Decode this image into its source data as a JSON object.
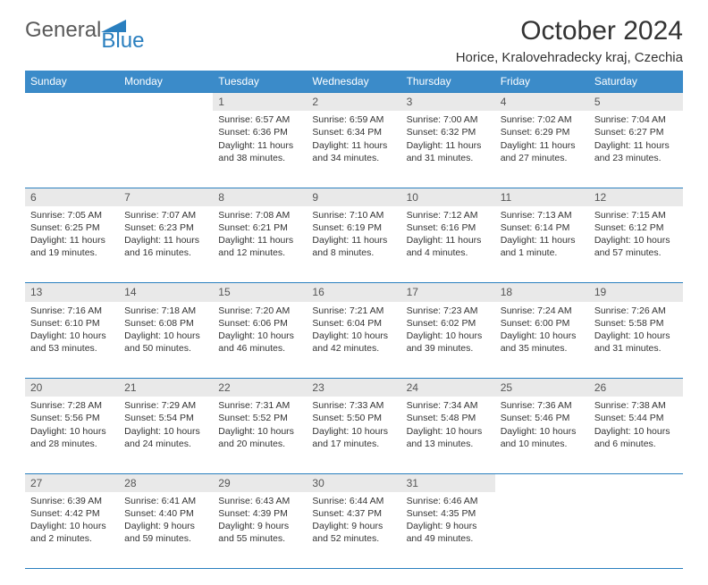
{
  "logo": {
    "text1": "General",
    "text2": "Blue"
  },
  "title": "October 2024",
  "location": "Horice, Kralovehradecky kraj, Czechia",
  "style": {
    "header_bg": "#3b8bc9",
    "header_fg": "#ffffff",
    "daynum_bg": "#e9e9e9",
    "border_color": "#2a7fbf",
    "page_bg": "#ffffff",
    "text_color": "#333333",
    "logo_gray": "#5a5a5a",
    "logo_blue": "#2a7fbf",
    "title_fontsize": 30,
    "location_fontsize": 15,
    "header_fontsize": 12,
    "cell_fontsize": 10.5
  },
  "day_headers": [
    "Sunday",
    "Monday",
    "Tuesday",
    "Wednesday",
    "Thursday",
    "Friday",
    "Saturday"
  ],
  "weeks": [
    [
      null,
      null,
      {
        "n": "1",
        "sunrise": "Sunrise: 6:57 AM",
        "sunset": "Sunset: 6:36 PM",
        "daylight": "Daylight: 11 hours and 38 minutes."
      },
      {
        "n": "2",
        "sunrise": "Sunrise: 6:59 AM",
        "sunset": "Sunset: 6:34 PM",
        "daylight": "Daylight: 11 hours and 34 minutes."
      },
      {
        "n": "3",
        "sunrise": "Sunrise: 7:00 AM",
        "sunset": "Sunset: 6:32 PM",
        "daylight": "Daylight: 11 hours and 31 minutes."
      },
      {
        "n": "4",
        "sunrise": "Sunrise: 7:02 AM",
        "sunset": "Sunset: 6:29 PM",
        "daylight": "Daylight: 11 hours and 27 minutes."
      },
      {
        "n": "5",
        "sunrise": "Sunrise: 7:04 AM",
        "sunset": "Sunset: 6:27 PM",
        "daylight": "Daylight: 11 hours and 23 minutes."
      }
    ],
    [
      {
        "n": "6",
        "sunrise": "Sunrise: 7:05 AM",
        "sunset": "Sunset: 6:25 PM",
        "daylight": "Daylight: 11 hours and 19 minutes."
      },
      {
        "n": "7",
        "sunrise": "Sunrise: 7:07 AM",
        "sunset": "Sunset: 6:23 PM",
        "daylight": "Daylight: 11 hours and 16 minutes."
      },
      {
        "n": "8",
        "sunrise": "Sunrise: 7:08 AM",
        "sunset": "Sunset: 6:21 PM",
        "daylight": "Daylight: 11 hours and 12 minutes."
      },
      {
        "n": "9",
        "sunrise": "Sunrise: 7:10 AM",
        "sunset": "Sunset: 6:19 PM",
        "daylight": "Daylight: 11 hours and 8 minutes."
      },
      {
        "n": "10",
        "sunrise": "Sunrise: 7:12 AM",
        "sunset": "Sunset: 6:16 PM",
        "daylight": "Daylight: 11 hours and 4 minutes."
      },
      {
        "n": "11",
        "sunrise": "Sunrise: 7:13 AM",
        "sunset": "Sunset: 6:14 PM",
        "daylight": "Daylight: 11 hours and 1 minute."
      },
      {
        "n": "12",
        "sunrise": "Sunrise: 7:15 AM",
        "sunset": "Sunset: 6:12 PM",
        "daylight": "Daylight: 10 hours and 57 minutes."
      }
    ],
    [
      {
        "n": "13",
        "sunrise": "Sunrise: 7:16 AM",
        "sunset": "Sunset: 6:10 PM",
        "daylight": "Daylight: 10 hours and 53 minutes."
      },
      {
        "n": "14",
        "sunrise": "Sunrise: 7:18 AM",
        "sunset": "Sunset: 6:08 PM",
        "daylight": "Daylight: 10 hours and 50 minutes."
      },
      {
        "n": "15",
        "sunrise": "Sunrise: 7:20 AM",
        "sunset": "Sunset: 6:06 PM",
        "daylight": "Daylight: 10 hours and 46 minutes."
      },
      {
        "n": "16",
        "sunrise": "Sunrise: 7:21 AM",
        "sunset": "Sunset: 6:04 PM",
        "daylight": "Daylight: 10 hours and 42 minutes."
      },
      {
        "n": "17",
        "sunrise": "Sunrise: 7:23 AM",
        "sunset": "Sunset: 6:02 PM",
        "daylight": "Daylight: 10 hours and 39 minutes."
      },
      {
        "n": "18",
        "sunrise": "Sunrise: 7:24 AM",
        "sunset": "Sunset: 6:00 PM",
        "daylight": "Daylight: 10 hours and 35 minutes."
      },
      {
        "n": "19",
        "sunrise": "Sunrise: 7:26 AM",
        "sunset": "Sunset: 5:58 PM",
        "daylight": "Daylight: 10 hours and 31 minutes."
      }
    ],
    [
      {
        "n": "20",
        "sunrise": "Sunrise: 7:28 AM",
        "sunset": "Sunset: 5:56 PM",
        "daylight": "Daylight: 10 hours and 28 minutes."
      },
      {
        "n": "21",
        "sunrise": "Sunrise: 7:29 AM",
        "sunset": "Sunset: 5:54 PM",
        "daylight": "Daylight: 10 hours and 24 minutes."
      },
      {
        "n": "22",
        "sunrise": "Sunrise: 7:31 AM",
        "sunset": "Sunset: 5:52 PM",
        "daylight": "Daylight: 10 hours and 20 minutes."
      },
      {
        "n": "23",
        "sunrise": "Sunrise: 7:33 AM",
        "sunset": "Sunset: 5:50 PM",
        "daylight": "Daylight: 10 hours and 17 minutes."
      },
      {
        "n": "24",
        "sunrise": "Sunrise: 7:34 AM",
        "sunset": "Sunset: 5:48 PM",
        "daylight": "Daylight: 10 hours and 13 minutes."
      },
      {
        "n": "25",
        "sunrise": "Sunrise: 7:36 AM",
        "sunset": "Sunset: 5:46 PM",
        "daylight": "Daylight: 10 hours and 10 minutes."
      },
      {
        "n": "26",
        "sunrise": "Sunrise: 7:38 AM",
        "sunset": "Sunset: 5:44 PM",
        "daylight": "Daylight: 10 hours and 6 minutes."
      }
    ],
    [
      {
        "n": "27",
        "sunrise": "Sunrise: 6:39 AM",
        "sunset": "Sunset: 4:42 PM",
        "daylight": "Daylight: 10 hours and 2 minutes."
      },
      {
        "n": "28",
        "sunrise": "Sunrise: 6:41 AM",
        "sunset": "Sunset: 4:40 PM",
        "daylight": "Daylight: 9 hours and 59 minutes."
      },
      {
        "n": "29",
        "sunrise": "Sunrise: 6:43 AM",
        "sunset": "Sunset: 4:39 PM",
        "daylight": "Daylight: 9 hours and 55 minutes."
      },
      {
        "n": "30",
        "sunrise": "Sunrise: 6:44 AM",
        "sunset": "Sunset: 4:37 PM",
        "daylight": "Daylight: 9 hours and 52 minutes."
      },
      {
        "n": "31",
        "sunrise": "Sunrise: 6:46 AM",
        "sunset": "Sunset: 4:35 PM",
        "daylight": "Daylight: 9 hours and 49 minutes."
      },
      null,
      null
    ]
  ]
}
